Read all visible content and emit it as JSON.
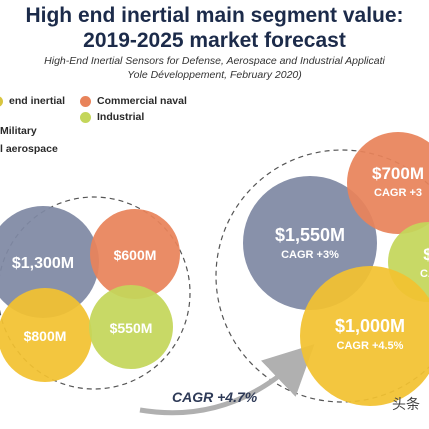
{
  "title": "High end inertial main segment value:\n2019-2025 market forecast",
  "subtitle": "High-End Inertial Sensors for Defense, Aerospace and Industrial Applicati\nYole Développement, February 2020)",
  "legend": [
    {
      "label": "end inertial",
      "color": "#d8c540"
    },
    {
      "label": "Commercial naval",
      "color": "#e8835a"
    },
    {
      "label": "Military",
      "color": "#7f89a4"
    },
    {
      "label": "Industrial",
      "color": "#c4d65a"
    },
    {
      "label": "l aerospace",
      "color": "#f2c230"
    }
  ],
  "arrow_label": "CAGR +4.7%",
  "watermark": "头条",
  "chart_data": {
    "type": "bubble",
    "title": "High end inertial main segment value: 2019-2025 market forecast",
    "groups": [
      {
        "year_label": "",
        "bubbles": [
          {
            "segment": "Military",
            "value": 1300,
            "label": "$1,300M",
            "color": "#7f89a4"
          },
          {
            "segment": "Commercial naval",
            "value": 600,
            "label": "$600M",
            "color": "#e8835a"
          },
          {
            "segment": "Commercial aerospace",
            "value": 800,
            "label": "$800M",
            "color": "#f2c230"
          },
          {
            "segment": "Industrial",
            "value": 550,
            "label": "$550M",
            "color": "#c4d65a"
          }
        ]
      },
      {
        "year_label": "",
        "bubbles": [
          {
            "segment": "Military",
            "value": 1550,
            "label": "$1,550M",
            "cagr": "CAGR +3%",
            "color": "#7f89a4"
          },
          {
            "segment": "Commercial naval",
            "value": 700,
            "label": "$700M",
            "cagr": "CAGR +3",
            "color": "#e8835a"
          },
          {
            "segment": "Commercial aerospace",
            "value": 1000,
            "label": "$1,000M",
            "cagr": "CAGR +4.5%",
            "color": "#f2c230"
          },
          {
            "segment": "Industrial",
            "value": null,
            "label": "$",
            "cagr": "CA",
            "color": "#c4d65a"
          }
        ]
      }
    ],
    "overall_cagr": "CAGR +4.7%"
  }
}
